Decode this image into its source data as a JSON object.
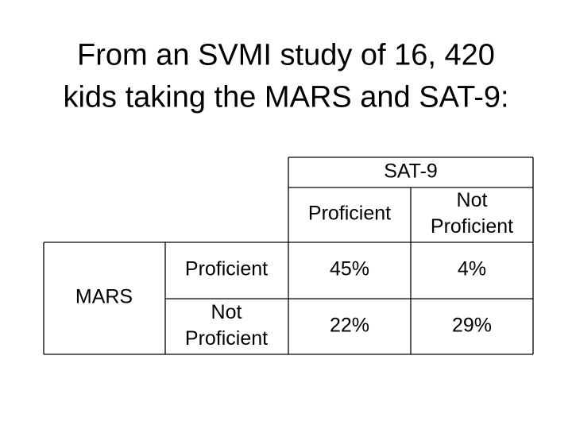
{
  "title": [
    "From an SVMI study of 16, 420",
    "kids taking the MARS and SAT-9:"
  ],
  "table": {
    "column_group": "SAT-9",
    "columns": [
      [
        "Proficient"
      ],
      [
        "Not",
        "Proficient"
      ]
    ],
    "row_group": "MARS",
    "rows": [
      {
        "label": [
          "Proficient"
        ],
        "cells": [
          "45%",
          "4%"
        ]
      },
      {
        "label": [
          "Not",
          "Proficient"
        ],
        "cells": [
          "22%",
          "29%"
        ]
      }
    ]
  }
}
